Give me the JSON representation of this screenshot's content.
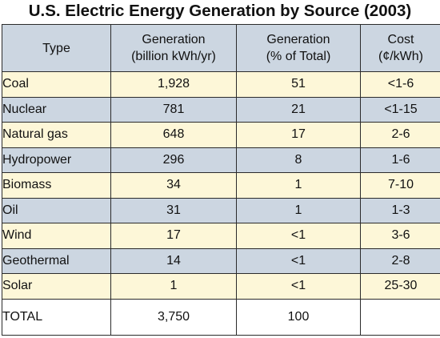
{
  "title": "U.S. Electric Energy Generation by Source (2003)",
  "chart_data": {
    "type": "table",
    "title": "U.S. Electric Energy Generation by Source (2003)",
    "columns": [
      {
        "line1": "Type",
        "line2": ""
      },
      {
        "line1": "Generation",
        "line2": "(billion kWh/yr)"
      },
      {
        "line1": "Generation",
        "line2": "(% of Total)"
      },
      {
        "line1": "Cost",
        "line2": "(¢/kWh)"
      }
    ],
    "rows": [
      {
        "type": "Coal",
        "generation": "1,928",
        "percent": "51",
        "cost": "<1-6"
      },
      {
        "type": "Nuclear",
        "generation": "781",
        "percent": "21",
        "cost": "<1-15"
      },
      {
        "type": "Natural gas",
        "generation": "648",
        "percent": "17",
        "cost": "2-6"
      },
      {
        "type": "Hydropower",
        "generation": "296",
        "percent": "8",
        "cost": "1-6"
      },
      {
        "type": "Biomass",
        "generation": "34",
        "percent": "1",
        "cost": "7-10"
      },
      {
        "type": "Oil",
        "generation": "31",
        "percent": "1",
        "cost": "1-3"
      },
      {
        "type": "Wind",
        "generation": "17",
        "percent": "<1",
        "cost": "3-6"
      },
      {
        "type": "Geothermal",
        "generation": "14",
        "percent": "<1",
        "cost": "2-8"
      },
      {
        "type": "Solar",
        "generation": "1",
        "percent": "<1",
        "cost": "25-30"
      }
    ],
    "total": {
      "type": "TOTAL",
      "generation": "3,750",
      "percent": "100",
      "cost": ""
    }
  },
  "colors": {
    "header_fill": "#ccd6e1",
    "row_odd_fill": "#fdf7d8",
    "row_even_fill": "#ccd6e1",
    "total_fill": "#ffffff",
    "border": "#2b2b2b"
  }
}
